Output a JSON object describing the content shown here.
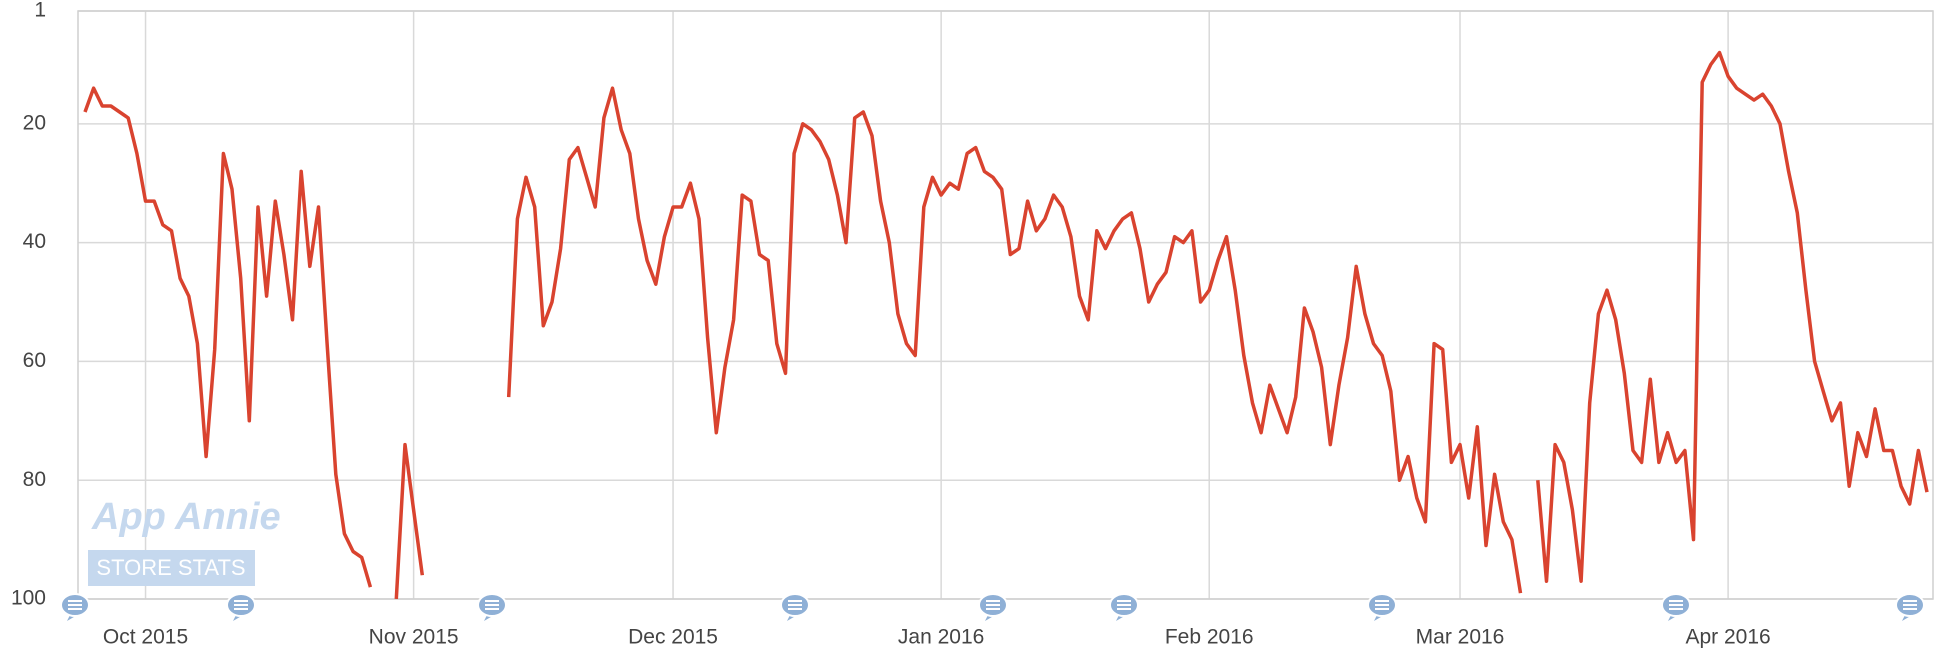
{
  "chart_data": {
    "type": "line",
    "watermark": {
      "title": "App Annie",
      "subtitle": "STORE STATS"
    },
    "categories": [
      null,
      null,
      null,
      null,
      null,
      null,
      null,
      "Oct 2015",
      null,
      null,
      null,
      null,
      null,
      null,
      null,
      null,
      null,
      null,
      null,
      null,
      null,
      null,
      null,
      null,
      null,
      null,
      null,
      null,
      null,
      null,
      null,
      null,
      null,
      null,
      null,
      null,
      null,
      null,
      "Nov 2015",
      null,
      null,
      null,
      null,
      null,
      null,
      null,
      null,
      null,
      null,
      null,
      null,
      null,
      null,
      null,
      null,
      null,
      null,
      null,
      null,
      null,
      null,
      null,
      null,
      null,
      null,
      null,
      null,
      null,
      "Dec 2015",
      null,
      null,
      null,
      null,
      null,
      null,
      null,
      null,
      null,
      null,
      null,
      null,
      null,
      null,
      null,
      null,
      null,
      null,
      null,
      null,
      null,
      null,
      null,
      null,
      null,
      null,
      null,
      null,
      null,
      null,
      "Jan 2016",
      null,
      null,
      null,
      null,
      null,
      null,
      null,
      null,
      null,
      null,
      null,
      null,
      null,
      null,
      null,
      null,
      null,
      null,
      null,
      null,
      null,
      null,
      null,
      null,
      null,
      null,
      null,
      null,
      null,
      null,
      "Feb 2016",
      null,
      null,
      null,
      null,
      null,
      null,
      null,
      null,
      null,
      null,
      null,
      null,
      null,
      null,
      null,
      null,
      null,
      null,
      null,
      null,
      null,
      null,
      null,
      null,
      null,
      null,
      null,
      null,
      "Mar 2016",
      null,
      null,
      null,
      null,
      null,
      null,
      null,
      null,
      null,
      null,
      null,
      null,
      null,
      null,
      null,
      null,
      null,
      null,
      null,
      null,
      null,
      null,
      null,
      null,
      null,
      null,
      null,
      null,
      null,
      null,
      "Apr 2016",
      null,
      null,
      null,
      null,
      null,
      null,
      null,
      null,
      null,
      null,
      null,
      null,
      null,
      null,
      null,
      null,
      null,
      null,
      null,
      null,
      null,
      null,
      null
    ],
    "values": [
      18,
      14,
      17,
      17,
      18,
      19,
      25,
      33,
      33,
      37,
      38,
      46,
      49,
      57,
      76,
      58,
      25,
      31,
      46,
      70,
      34,
      49,
      33,
      42,
      53,
      28,
      44,
      34,
      57,
      79,
      89,
      92,
      93,
      98,
      null,
      null,
      100,
      74,
      85,
      96,
      null,
      null,
      null,
      null,
      null,
      null,
      null,
      null,
      null,
      66,
      36,
      29,
      34,
      54,
      50,
      41,
      26,
      24,
      29,
      34,
      19,
      14,
      21,
      25,
      36,
      43,
      47,
      39,
      34,
      34,
      30,
      36,
      56,
      72,
      61,
      53,
      32,
      33,
      42,
      43,
      57,
      62,
      25,
      20,
      21,
      23,
      26,
      32,
      40,
      19,
      18,
      22,
      33,
      40,
      52,
      57,
      59,
      34,
      29,
      32,
      30,
      31,
      25,
      24,
      28,
      29,
      31,
      42,
      41,
      33,
      38,
      36,
      32,
      34,
      39,
      49,
      53,
      38,
      41,
      38,
      36,
      35,
      41,
      50,
      47,
      45,
      39,
      40,
      38,
      50,
      48,
      43,
      39,
      48,
      59,
      67,
      72,
      64,
      68,
      72,
      66,
      51,
      55,
      61,
      74,
      64,
      56,
      44,
      52,
      57,
      59,
      65,
      80,
      76,
      83,
      87,
      57,
      58,
      77,
      74,
      83,
      71,
      91,
      79,
      87,
      90,
      99,
      null,
      80,
      97,
      74,
      77,
      85,
      97,
      67,
      52,
      48,
      53,
      62,
      75,
      77,
      63,
      77,
      72,
      77,
      75,
      90,
      13,
      10,
      8,
      12,
      14,
      15,
      16,
      15,
      17,
      20,
      28,
      35,
      48,
      60,
      65,
      70,
      67,
      81,
      72,
      76,
      68,
      75,
      75,
      81,
      84,
      75,
      82
    ],
    "color": "#d9432f",
    "ylim": [
      1,
      100
    ],
    "y_reversed": true,
    "yticks": [
      1,
      20,
      40,
      60,
      80,
      100
    ],
    "grid": true
  }
}
